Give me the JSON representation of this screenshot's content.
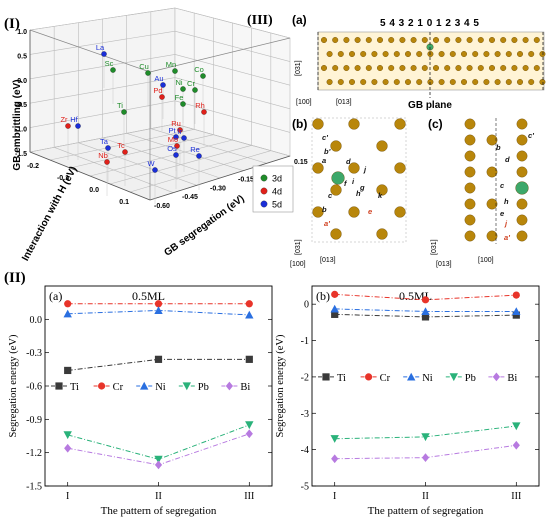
{
  "panel_I": {
    "label": "(I)",
    "chart_data": {
      "type": "scatter",
      "zlabel": "GB embrittling (eV)",
      "xlabel": "GB segregation (eV)",
      "ylabel": "Interaction with H (eV)",
      "z_ticks": [
        "1.0",
        "0.5",
        "0.0",
        "-0.5",
        "-1.0",
        "-1.5"
      ],
      "x_ticks": [
        "0.15",
        "0.00",
        "-0.15",
        "-0.30",
        "-0.45",
        "-0.60"
      ],
      "y_ticks": [
        "-0.2",
        "-0.1",
        "0.0",
        "0.1"
      ],
      "legend": [
        {
          "name": "3d",
          "color": "#1f8c2a"
        },
        {
          "name": "4d",
          "color": "#e0201a"
        },
        {
          "name": "5d",
          "color": "#1a2ed8"
        }
      ],
      "points": [
        {
          "label": "La",
          "group": "5d"
        },
        {
          "label": "Sc",
          "group": "3d"
        },
        {
          "label": "Cu",
          "group": "3d"
        },
        {
          "label": "Mn",
          "group": "3d"
        },
        {
          "label": "Co",
          "group": "3d"
        },
        {
          "label": "Au",
          "group": "5d"
        },
        {
          "label": "Ni",
          "group": "3d"
        },
        {
          "label": "Cr",
          "group": "3d"
        },
        {
          "label": "Pd",
          "group": "4d"
        },
        {
          "label": "Fe",
          "group": "3d"
        },
        {
          "label": "Ti",
          "group": "3d"
        },
        {
          "label": "Rh",
          "group": "4d"
        },
        {
          "label": "Zr",
          "group": "4d"
        },
        {
          "label": "Hf",
          "group": "5d"
        },
        {
          "label": "Ru",
          "group": "4d"
        },
        {
          "label": "Pt",
          "group": "5d"
        },
        {
          "label": "Ir",
          "group": "5d"
        },
        {
          "label": "Mo",
          "group": "4d"
        },
        {
          "label": "Ta",
          "group": "5d"
        },
        {
          "label": "Tc",
          "group": "4d"
        },
        {
          "label": "Os",
          "group": "5d"
        },
        {
          "label": "Nb",
          "group": "4d"
        },
        {
          "label": "Re",
          "group": "5d"
        },
        {
          "label": "W",
          "group": "5d"
        }
      ]
    }
  },
  "panel_III": {
    "label": "(III)",
    "a_label": "(a)",
    "b_label": "(b)",
    "c_label": "(c)",
    "layer_numbers": "5 4 3 2 1 0 1 2 3 4 5",
    "gb_plane": "GB plane",
    "dir_031": "[031]",
    "dir_100": "[100]",
    "dir_013": "[013]",
    "site_letters_b": [
      "c'",
      "b'",
      "a",
      "d",
      "f",
      "i",
      "j",
      "g",
      "h",
      "k",
      "c",
      "b",
      "a'",
      "e"
    ],
    "site_letters_c": [
      "c'",
      "b",
      "d",
      "c",
      "h",
      "e",
      "j",
      "a'"
    ]
  },
  "panel_II": {
    "label": "(II)",
    "chart_data": [
      {
        "type": "line",
        "panel": "(a)",
        "annotation": "0.5ML",
        "xlabel": "The pattern of segregation",
        "ylabel": "Segregation energy (eV)",
        "categories": [
          "I",
          "II",
          "III"
        ],
        "ylim": [
          -1.5,
          0.3
        ],
        "yticks": [
          0.0,
          -0.3,
          -0.6,
          -0.9,
          -1.2,
          -1.5
        ],
        "ytick_labels": [
          "0.0",
          "-0.3",
          "-0.6",
          "-0.9",
          "-1.2",
          "-1.5"
        ],
        "legend_placement": "middle",
        "series": [
          {
            "name": "Ti",
            "color": "#3a3a3a",
            "marker": "square",
            "values": [
              -0.46,
              -0.36,
              -0.36
            ]
          },
          {
            "name": "Cr",
            "color": "#e8342a",
            "marker": "circle",
            "values": [
              0.14,
              0.14,
              0.14
            ]
          },
          {
            "name": "Ni",
            "color": "#2a6fe0",
            "marker": "triangle",
            "values": [
              0.05,
              0.08,
              0.04
            ]
          },
          {
            "name": "Pb",
            "color": "#2ab27a",
            "marker": "triangle-down",
            "values": [
              -1.04,
              -1.26,
              -0.95
            ]
          },
          {
            "name": "Bi",
            "color": "#b77ae0",
            "marker": "diamond",
            "values": [
              -1.16,
              -1.31,
              -1.03
            ]
          }
        ]
      },
      {
        "type": "line",
        "panel": "(b)",
        "annotation": "0.5ML",
        "xlabel": "The pattern of segregation",
        "ylabel": "Segregation energy (eV)",
        "categories": [
          "I",
          "II",
          "III"
        ],
        "ylim": [
          -5,
          0.5
        ],
        "yticks": [
          0,
          -1,
          -2,
          -3,
          -4,
          -5
        ],
        "ytick_labels": [
          "0",
          "-1",
          "-2",
          "-3",
          "-4",
          "-5"
        ],
        "legend_placement": "middle",
        "series": [
          {
            "name": "Ti",
            "color": "#3a3a3a",
            "marker": "square",
            "values": [
              -0.28,
              -0.35,
              -0.3
            ]
          },
          {
            "name": "Cr",
            "color": "#e8342a",
            "marker": "circle",
            "values": [
              0.27,
              0.12,
              0.25
            ]
          },
          {
            "name": "Ni",
            "color": "#2a6fe0",
            "marker": "triangle",
            "values": [
              -0.13,
              -0.2,
              -0.2
            ]
          },
          {
            "name": "Pb",
            "color": "#2ab27a",
            "marker": "triangle-down",
            "values": [
              -3.7,
              -3.65,
              -3.35
            ]
          },
          {
            "name": "Bi",
            "color": "#b77ae0",
            "marker": "diamond",
            "values": [
              -4.25,
              -4.22,
              -3.88
            ]
          }
        ]
      }
    ]
  }
}
